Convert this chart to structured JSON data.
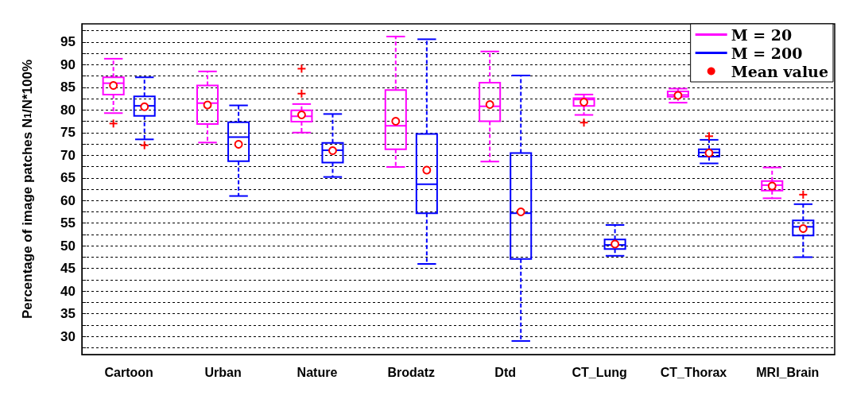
{
  "chart_data": {
    "type": "box",
    "ylabel": "Percentage of image patches N$_{1}$/N*100%",
    "categories": [
      "Cartoon",
      "Urban",
      "Nature",
      "Brodatz",
      "Dtd",
      "CT_Lung",
      "CT_Thorax",
      "MRI_Brain"
    ],
    "ylim": [
      26,
      99
    ],
    "yticks": [
      {
        "value": 27.5,
        "label": null
      },
      30,
      {
        "value": 32.5,
        "label": null
      },
      35,
      {
        "value": 37.5,
        "label": null
      },
      40,
      {
        "value": 42.5,
        "label": null
      },
      45,
      {
        "value": 47.5,
        "label": null
      },
      50,
      {
        "value": 52.5,
        "label": null
      },
      55,
      {
        "value": 57.5,
        "label": null
      },
      60,
      {
        "value": 62.5,
        "label": null
      },
      65,
      {
        "value": 67.5,
        "label": null
      },
      70,
      {
        "value": 72.5,
        "label": null
      },
      75,
      {
        "value": 77.5,
        "label": null
      },
      80,
      {
        "value": 82.5,
        "label": null
      },
      85,
      {
        "value": 87.5,
        "label": null
      },
      90,
      {
        "value": 92.5,
        "label": null
      },
      95,
      {
        "value": 97.5,
        "label": null
      }
    ],
    "grid": "y",
    "legend": "top right",
    "series": [
      {
        "name": "M = 20",
        "color": "#ff00ff",
        "boxes": [
          {
            "low": 79.3,
            "q1": 83.4,
            "median": 85.9,
            "q3": 87.2,
            "high": 91.3,
            "outliers": [
              77.0
            ]
          },
          {
            "low": 72.8,
            "q1": 76.9,
            "median": 81.5,
            "q3": 85.4,
            "high": 88.5
          },
          {
            "low": 75.0,
            "q1": 77.4,
            "median": 78.6,
            "q3": 79.9,
            "high": 81.3,
            "outliers": [
              89.1,
              83.6
            ]
          },
          {
            "low": 67.4,
            "q1": 71.3,
            "median": 76.5,
            "q3": 84.4,
            "high": 96.2
          },
          {
            "low": 68.6,
            "q1": 77.5,
            "median": 80.8,
            "q3": 86.0,
            "high": 92.9
          },
          {
            "low": 78.9,
            "q1": 80.9,
            "median": 82.3,
            "q3": 82.6,
            "high": 83.4,
            "outliers": [
              77.2
            ]
          },
          {
            "low": 81.6,
            "q1": 82.9,
            "median": 83.3,
            "q3": 84.1,
            "high": 84.7
          },
          {
            "low": 60.5,
            "q1": 62.2,
            "median": 63.4,
            "q3": 64.3,
            "high": 67.3
          }
        ]
      },
      {
        "name": "M = 200",
        "color": "#0000ff",
        "boxes": [
          {
            "low": 73.5,
            "q1": 78.7,
            "median": 80.9,
            "q3": 83.0,
            "high": 87.2,
            "outliers": [
              72.2
            ]
          },
          {
            "low": 61.0,
            "q1": 68.7,
            "median": 74.0,
            "q3": 77.3,
            "high": 81.0
          },
          {
            "low": 65.2,
            "q1": 68.4,
            "median": 71.1,
            "q3": 72.7,
            "high": 79.1
          },
          {
            "low": 46.0,
            "q1": 57.2,
            "median": 63.6,
            "q3": 74.7,
            "high": 95.6
          },
          {
            "low": 29.0,
            "q1": 47.1,
            "median": 57.2,
            "q3": 70.5,
            "high": 87.6
          },
          {
            "low": 47.8,
            "q1": 49.3,
            "median": 50.2,
            "q3": 51.4,
            "high": 54.6
          },
          {
            "low": 68.2,
            "q1": 69.7,
            "median": 70.6,
            "q3": 71.3,
            "high": 73.4,
            "outliers": [
              74.2
            ]
          },
          {
            "low": 47.5,
            "q1": 52.3,
            "median": 54.2,
            "q3": 55.6,
            "high": 59.2,
            "outliers": [
              61.3
            ]
          }
        ]
      },
      {
        "type": "scatter",
        "name": "Mean value",
        "color": "#ff0000",
        "marker": "circle",
        "x": [
          "Cartoon",
          "Cartoon",
          "Urban",
          "Urban",
          "Nature",
          "Nature",
          "Brodatz",
          "Brodatz",
          "Dtd",
          "Dtd",
          "CT_Lung",
          "CT_Lung",
          "CT_Thorax",
          "CT_Thorax",
          "MRI_Brain",
          "MRI_Brain"
        ],
        "values": [
          85.4,
          80.7,
          81.1,
          72.4,
          78.9,
          71.0,
          77.5,
          66.7,
          81.2,
          57.5,
          81.7,
          50.4,
          83.2,
          70.5,
          63.2,
          53.8
        ]
      }
    ]
  }
}
